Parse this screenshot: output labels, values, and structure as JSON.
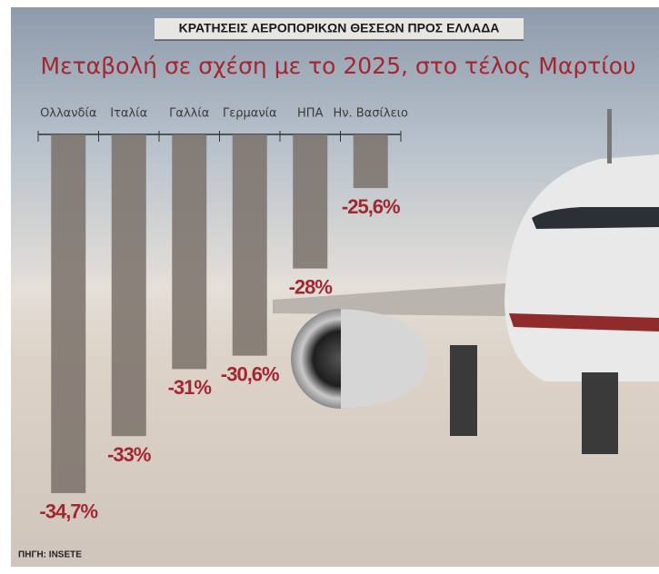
{
  "chart_data": {
    "type": "bar",
    "title": "ΚΡΑΤΗΣΕΙΣ ΑΕΡΟΠΟΡΙΚΩΝ ΘΕΣΕΩΝ ΠΡΟΣ ΕΛΛΑΔΑ",
    "subtitle": "Μεταβολή σε σχέση με το 2025, στο τέλος Μαρτίου",
    "source": "ΠΗΓΗ: INSETE",
    "categories": [
      "Ολλανδία",
      "Ιταλία",
      "Γαλλία",
      "Γερμανία",
      "ΗΠΑ",
      "Ην. Βασίλειο"
    ],
    "values": [
      -34.7,
      -33,
      -31,
      -30.6,
      -28,
      -25.6
    ],
    "value_labels": [
      "-34,7%",
      "-33%",
      "-31%",
      "-30,6%",
      "-28%",
      "-25,6%"
    ],
    "color": "#7a716a",
    "ylim": [
      -35,
      -24
    ]
  }
}
